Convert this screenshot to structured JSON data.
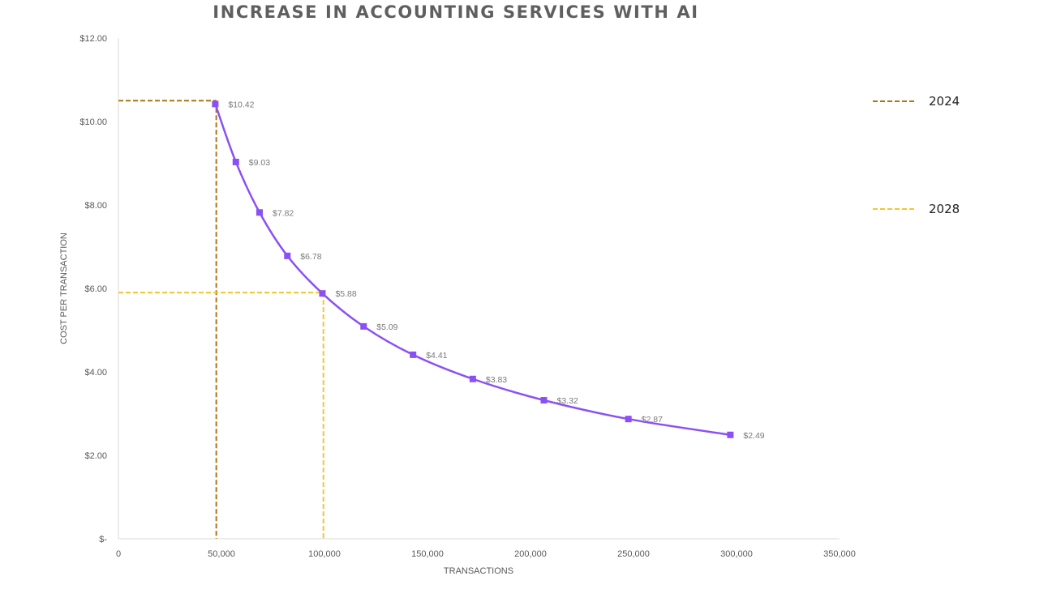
{
  "chart_data": {
    "type": "line",
    "title": "INCREASE IN ACCOUNTING SERVICES WITH AI",
    "xlabel": "TRANSACTIONS",
    "ylabel": "COST PER TRANSACTION",
    "xlim": [
      0,
      350000
    ],
    "ylim": [
      0,
      12
    ],
    "x_ticks": [
      0,
      50000,
      100000,
      150000,
      200000,
      250000,
      300000,
      350000
    ],
    "x_tick_labels": [
      "0",
      "50,000",
      "100,000",
      "150,000",
      "200,000",
      "250,000",
      "300,000",
      "350,000"
    ],
    "y_ticks": [
      0,
      2,
      4,
      6,
      8,
      10,
      12
    ],
    "y_tick_labels": [
      "$-",
      "$2.00",
      "$4.00",
      "$6.00",
      "$8.00",
      "$10.00",
      "$12.00"
    ],
    "series": [
      {
        "name": "Cost per transaction",
        "color": "#8b50f5",
        "x": [
          47000,
          57000,
          68500,
          82000,
          99000,
          119000,
          143000,
          172000,
          206500,
          247500,
          297000
        ],
        "values": [
          10.42,
          9.03,
          7.82,
          6.78,
          5.88,
          5.09,
          4.41,
          3.83,
          3.32,
          2.87,
          2.49
        ],
        "labels": [
          "$10.42",
          "$9.03",
          "$7.82",
          "$6.78",
          "$5.88",
          "$5.09",
          "$4.41",
          "$3.83",
          "$3.32",
          "$2.87",
          "$2.49"
        ]
      }
    ],
    "reference_lines": [
      {
        "name": "2024",
        "color": "#b07412",
        "x": 47500,
        "y": 10.5
      },
      {
        "name": "2028",
        "color": "#f2c531",
        "x": 99500,
        "y": 5.9
      }
    ],
    "legend": {
      "position": "right",
      "entries": [
        {
          "label": "2024",
          "color": "#b07412"
        },
        {
          "label": "2028",
          "color": "#f2c531"
        }
      ]
    }
  }
}
